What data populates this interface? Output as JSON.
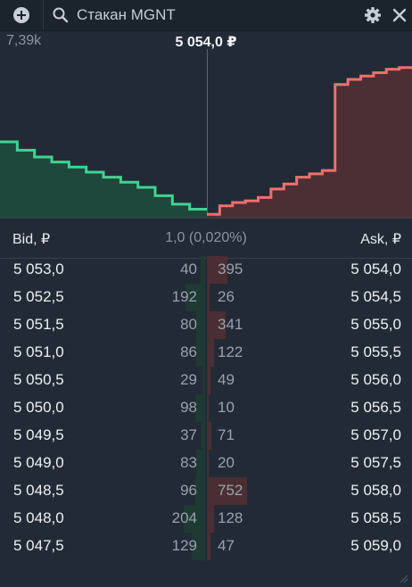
{
  "header": {
    "search_placeholder": "Стакан MGNT",
    "search_value": "Стакан MGNT"
  },
  "chart": {
    "volume_label": "7,39k",
    "mid_price": "5 054,0 ₽",
    "bid_color": "#3ed492",
    "ask_color": "#f0706e",
    "bid_depth": [
      0.45,
      0.4,
      0.36,
      0.33,
      0.3,
      0.27,
      0.24,
      0.21,
      0.18,
      0.13,
      0.08,
      0.05
    ],
    "ask_depth": [
      0.02,
      0.07,
      0.09,
      0.1,
      0.12,
      0.17,
      0.2,
      0.24,
      0.26,
      0.28,
      0.79,
      0.82,
      0.84,
      0.86,
      0.88,
      0.89
    ]
  },
  "columns": {
    "bid": "Bid, ₽",
    "spread": "1,0 (0,020%)",
    "ask": "Ask, ₽"
  },
  "rows": [
    {
      "bid_price": "5 053,0",
      "bid_qty": "40",
      "ask_qty": "395",
      "ask_price": "5 054,0",
      "bid_frac": 0.2,
      "ask_frac": 0.5
    },
    {
      "bid_price": "5 052,5",
      "bid_qty": "192",
      "ask_qty": "26",
      "ask_price": "5 054,5",
      "bid_frac": 0.9,
      "ask_frac": 0.05
    },
    {
      "bid_price": "5 051,5",
      "bid_qty": "80",
      "ask_qty": "341",
      "ask_price": "5 055,0",
      "bid_frac": 0.4,
      "ask_frac": 0.45
    },
    {
      "bid_price": "5 051,0",
      "bid_qty": "86",
      "ask_qty": "122",
      "ask_price": "5 055,5",
      "bid_frac": 0.4,
      "ask_frac": 0.16
    },
    {
      "bid_price": "5 050,5",
      "bid_qty": "29",
      "ask_qty": "49",
      "ask_price": "5 056,0",
      "bid_frac": 0.14,
      "ask_frac": 0.06
    },
    {
      "bid_price": "5 050,0",
      "bid_qty": "98",
      "ask_qty": "10",
      "ask_price": "5 056,5",
      "bid_frac": 0.46,
      "ask_frac": 0.02
    },
    {
      "bid_price": "5 049,5",
      "bid_qty": "37",
      "ask_qty": "71",
      "ask_price": "5 057,0",
      "bid_frac": 0.18,
      "ask_frac": 0.09
    },
    {
      "bid_price": "5 049,0",
      "bid_qty": "83",
      "ask_qty": "20",
      "ask_price": "5 057,5",
      "bid_frac": 0.4,
      "ask_frac": 0.03
    },
    {
      "bid_price": "5 048,5",
      "bid_qty": "96",
      "ask_qty": "752",
      "ask_price": "5 058,0",
      "bid_frac": 0.45,
      "ask_frac": 1.0
    },
    {
      "bid_price": "5 048,0",
      "bid_qty": "204",
      "ask_qty": "128",
      "ask_price": "5 058,5",
      "bid_frac": 1.0,
      "ask_frac": 0.17
    },
    {
      "bid_price": "5 047,5",
      "bid_qty": "129",
      "ask_qty": "47",
      "ask_price": "5 059,0",
      "bid_frac": 0.62,
      "ask_frac": 0.06
    }
  ]
}
